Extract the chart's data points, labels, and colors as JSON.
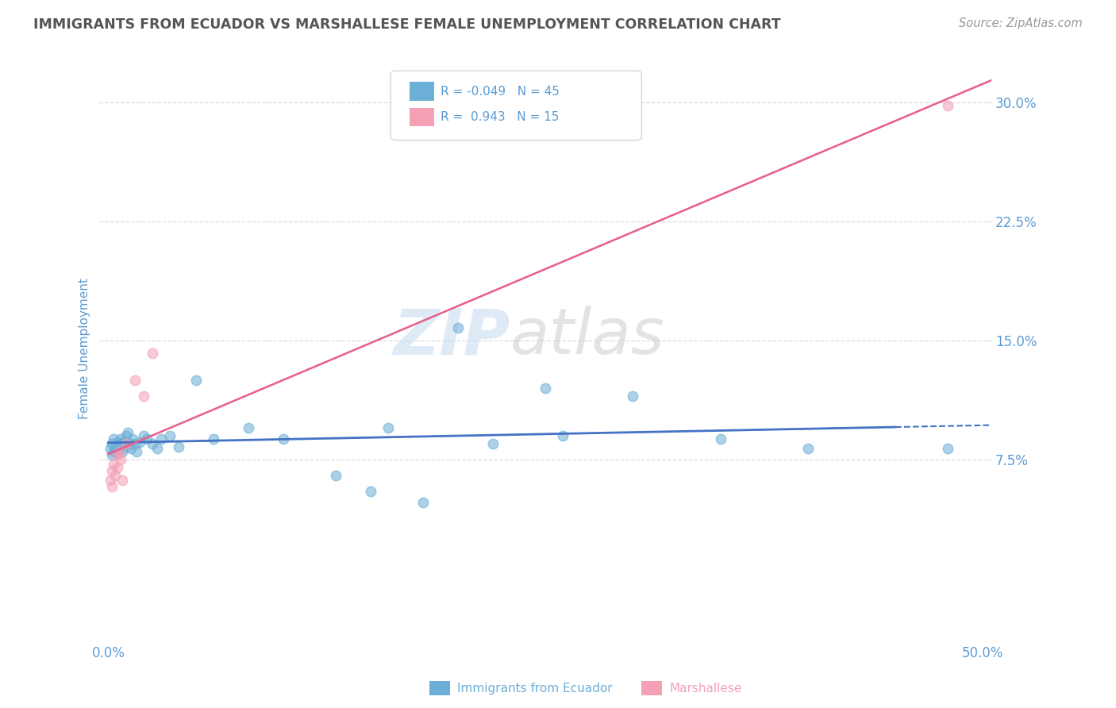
{
  "title": "IMMIGRANTS FROM ECUADOR VS MARSHALLESE FEMALE UNEMPLOYMENT CORRELATION CHART",
  "source": "Source: ZipAtlas.com",
  "ylabel": "Female Unemployment",
  "xlim": [
    -0.005,
    0.505
  ],
  "ylim": [
    -0.04,
    0.33
  ],
  "yticks": [
    0.075,
    0.15,
    0.225,
    0.3
  ],
  "ytick_labels": [
    "7.5%",
    "15.0%",
    "22.5%",
    "30.0%"
  ],
  "xticks": [
    0.0,
    0.5
  ],
  "xtick_labels": [
    "0.0%",
    "50.0%"
  ],
  "series1_name": "Immigrants from Ecuador",
  "series1_color": "#6baed6",
  "series1_R": -0.049,
  "series1_N": 45,
  "series2_name": "Marshallese",
  "series2_color": "#f4a0b5",
  "series2_R": 0.943,
  "series2_N": 15,
  "ecuador_x": [
    0.001,
    0.002,
    0.002,
    0.003,
    0.003,
    0.004,
    0.005,
    0.005,
    0.006,
    0.007,
    0.007,
    0.008,
    0.009,
    0.01,
    0.01,
    0.011,
    0.012,
    0.013,
    0.014,
    0.015,
    0.016,
    0.018,
    0.02,
    0.022,
    0.025,
    0.028,
    0.03,
    0.035,
    0.04,
    0.05,
    0.06,
    0.08,
    0.1,
    0.13,
    0.15,
    0.18,
    0.22,
    0.26,
    0.3,
    0.35,
    0.4,
    0.48,
    0.25,
    0.2,
    0.16
  ],
  "ecuador_y": [
    0.082,
    0.078,
    0.085,
    0.088,
    0.08,
    0.083,
    0.079,
    0.086,
    0.082,
    0.088,
    0.085,
    0.08,
    0.086,
    0.09,
    0.083,
    0.092,
    0.085,
    0.082,
    0.088,
    0.085,
    0.08,
    0.086,
    0.09,
    0.088,
    0.085,
    0.082,
    0.088,
    0.09,
    0.083,
    0.125,
    0.088,
    0.095,
    0.088,
    0.065,
    0.055,
    0.048,
    0.085,
    0.09,
    0.115,
    0.088,
    0.082,
    0.082,
    0.12,
    0.158,
    0.095
  ],
  "marshallese_x": [
    0.001,
    0.002,
    0.002,
    0.003,
    0.004,
    0.005,
    0.005,
    0.006,
    0.007,
    0.008,
    0.01,
    0.015,
    0.02,
    0.025,
    0.48
  ],
  "marshallese_y": [
    0.062,
    0.058,
    0.068,
    0.072,
    0.065,
    0.07,
    0.078,
    0.08,
    0.075,
    0.062,
    0.085,
    0.125,
    0.115,
    0.142,
    0.298
  ],
  "watermark_zip": "ZIP",
  "watermark_atlas": "atlas",
  "background_color": "#ffffff",
  "grid_color": "#dddddd",
  "title_color": "#555555",
  "axis_label_color": "#5b9bd5",
  "tick_color": "#5b9bd5",
  "legend_text_color": "#5b9bd5",
  "ecuador_line_color": "#4472c4",
  "marshallese_line_color": "#e85d8a"
}
